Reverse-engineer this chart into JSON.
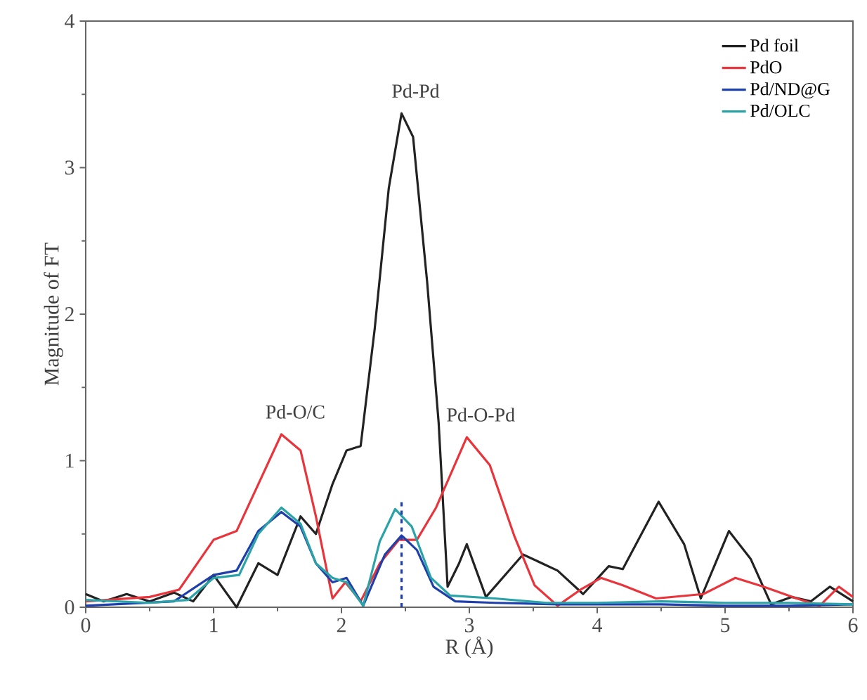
{
  "chart_data": {
    "type": "line",
    "xlabel": "R (Å)",
    "ylabel": "Magnitude of FT",
    "xlim": [
      0,
      6
    ],
    "ylim": [
      0,
      4
    ],
    "xticks": [
      0,
      1,
      2,
      3,
      4,
      5,
      6
    ],
    "yticks": [
      0,
      1,
      2,
      3,
      4
    ],
    "legend": "top right",
    "grid": false,
    "marker": "none",
    "line_style": "solid",
    "series": [
      {
        "name": "Pd foil",
        "color": "#222222",
        "x": [
          0,
          0.14,
          0.32,
          0.5,
          0.69,
          0.84,
          1.0,
          1.18,
          1.35,
          1.5,
          1.68,
          1.8,
          1.93,
          2.04,
          2.15,
          2.26,
          2.37,
          2.47,
          2.56,
          2.67,
          2.76,
          2.83,
          2.92,
          2.98,
          3.13,
          3.42,
          3.69,
          3.89,
          4.09,
          4.2,
          4.48,
          4.68,
          4.81,
          5.03,
          5.2,
          5.36,
          5.52,
          5.67,
          5.82,
          6.0
        ],
        "values": [
          0.09,
          0.04,
          0.09,
          0.04,
          0.1,
          0.04,
          0.22,
          0,
          0.3,
          0.22,
          0.62,
          0.5,
          0.84,
          1.07,
          1.1,
          1.9,
          2.86,
          3.37,
          3.21,
          2.22,
          1.26,
          0.14,
          0.3,
          0.43,
          0.07,
          0.36,
          0.25,
          0.09,
          0.28,
          0.26,
          0.72,
          0.43,
          0.06,
          0.52,
          0.33,
          0.02,
          0.07,
          0.04,
          0.14,
          0.04
        ]
      },
      {
        "name": "PdO",
        "color": "#e8343a",
        "x": [
          0,
          0.5,
          0.73,
          1.0,
          1.18,
          1.35,
          1.53,
          1.68,
          1.8,
          1.93,
          2.03,
          2.15,
          2.3,
          2.45,
          2.59,
          2.74,
          2.85,
          2.98,
          3.16,
          3.35,
          3.51,
          3.69,
          3.87,
          4.03,
          4.2,
          4.46,
          4.83,
          5.08,
          5.3,
          5.56,
          5.74,
          5.89,
          6.0
        ],
        "values": [
          0.04,
          0.07,
          0.12,
          0.46,
          0.52,
          0.84,
          1.18,
          1.07,
          0.62,
          0.06,
          0.17,
          0.04,
          0.3,
          0.46,
          0.46,
          0.68,
          0.9,
          1.16,
          0.97,
          0.49,
          0.15,
          0.01,
          0.12,
          0.2,
          0.15,
          0.06,
          0.09,
          0.2,
          0.14,
          0.06,
          0.01,
          0.14,
          0.07
        ]
      },
      {
        "name": "Pd/ND@G",
        "color": "#1f3faa",
        "x": [
          0,
          0.69,
          1.0,
          1.18,
          1.35,
          1.53,
          1.68,
          1.8,
          1.93,
          2.04,
          2.17,
          2.34,
          2.47,
          2.59,
          2.72,
          2.89,
          3.2,
          3.7,
          4.5,
          5.0,
          5.5,
          6.0
        ],
        "values": [
          0.01,
          0.04,
          0.22,
          0.25,
          0.52,
          0.65,
          0.55,
          0.3,
          0.17,
          0.2,
          0.01,
          0.36,
          0.49,
          0.39,
          0.14,
          0.04,
          0.03,
          0.02,
          0.02,
          0.01,
          0.01,
          0.02
        ]
      },
      {
        "name": "Pd/OLC",
        "color": "#2aa3a8",
        "x": [
          0,
          0.5,
          0.8,
          1.0,
          1.2,
          1.35,
          1.53,
          1.68,
          1.8,
          1.93,
          2.04,
          2.17,
          2.3,
          2.42,
          2.55,
          2.7,
          2.85,
          3.2,
          3.6,
          4.0,
          4.5,
          5.0,
          5.5,
          6.0
        ],
        "values": [
          0.05,
          0.03,
          0.05,
          0.2,
          0.22,
          0.5,
          0.68,
          0.57,
          0.3,
          0.2,
          0.17,
          0.01,
          0.45,
          0.67,
          0.55,
          0.2,
          0.08,
          0.06,
          0.03,
          0.03,
          0.04,
          0.03,
          0.03,
          0.02
        ]
      },
      {
        "type": "line",
        "color": "#1f3faa",
        "line_style": "dashed",
        "x": [
          2.47,
          2.47
        ],
        "values": [
          0,
          0.73
        ]
      }
    ],
    "annotations": [
      {
        "text": "Pd-Pd",
        "x": 2.47,
        "y": 3.37
      },
      {
        "text": "Pd-O/C",
        "x": 1.53,
        "y": 1.18
      },
      {
        "text": "Pd-O-Pd",
        "x": 2.98,
        "y": 1.16
      }
    ]
  }
}
